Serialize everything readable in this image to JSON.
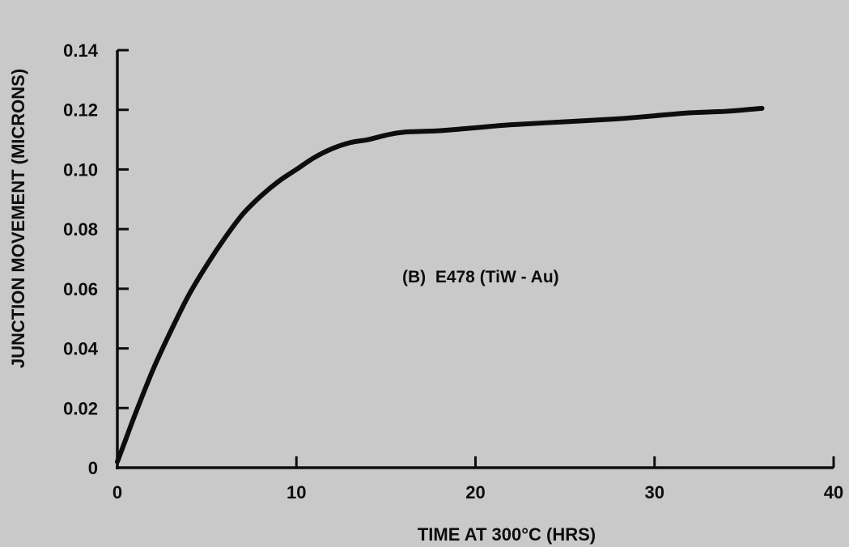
{
  "chart_data": {
    "type": "line",
    "title": "",
    "xlabel": "TIME AT 300°C (HRS)",
    "ylabel": "JUNCTION MOVEMENT (MICRONS)",
    "xlim": [
      0,
      40
    ],
    "ylim": [
      0,
      0.14
    ],
    "x_ticks": [
      0,
      10,
      20,
      30,
      40
    ],
    "x_tick_labels": [
      "0",
      "10",
      "20",
      "30",
      "40"
    ],
    "y_ticks": [
      0,
      0.02,
      0.04,
      0.06,
      0.08,
      0.1,
      0.12,
      0.14
    ],
    "y_tick_labels": [
      "0",
      "0.02",
      "0.04",
      "0.06",
      "0.08",
      "0.10",
      "0.12",
      "0.14"
    ],
    "grid": false,
    "annotation": "(B)  E478 (TiW - Au)",
    "series": [
      {
        "x": [
          0,
          0.5,
          1,
          2,
          3,
          4,
          5,
          6,
          7,
          8,
          9,
          10,
          11,
          12,
          13,
          14,
          15,
          16,
          18,
          20,
          22,
          25,
          28,
          30,
          32,
          34,
          36
        ],
        "y": [
          0.002,
          0.01,
          0.018,
          0.033,
          0.046,
          0.058,
          0.068,
          0.077,
          0.085,
          0.091,
          0.096,
          0.1,
          0.104,
          0.107,
          0.109,
          0.11,
          0.1115,
          0.1125,
          0.113,
          0.114,
          0.115,
          0.116,
          0.117,
          0.118,
          0.119,
          0.1195,
          0.1205
        ],
        "color": "#0d0d0d"
      }
    ]
  }
}
